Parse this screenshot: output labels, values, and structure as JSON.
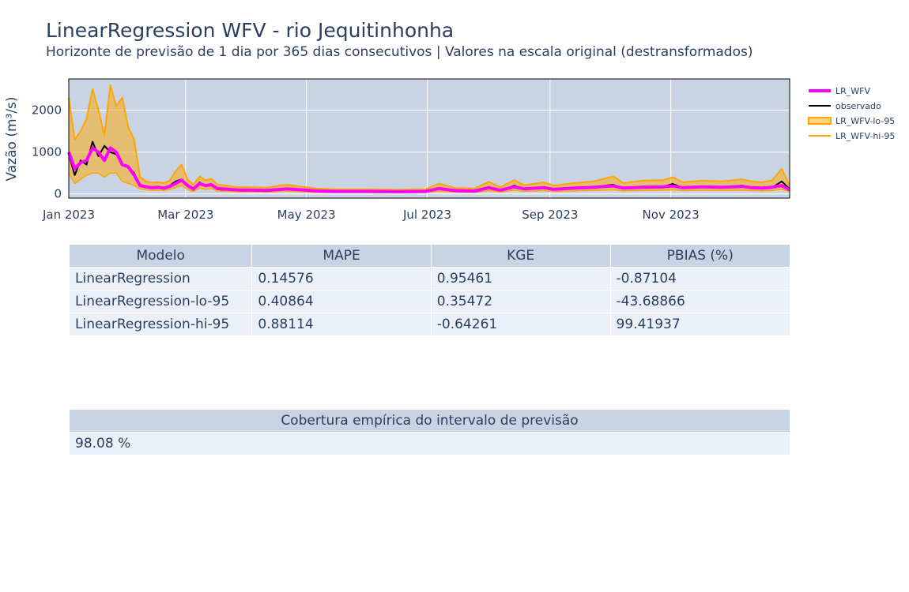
{
  "header": {
    "title": "LinearRegression WFV - rio Jequitinhonha",
    "subtitle": "Horizonte de previsão de 1 dia por 365 dias consecutivos | Valores na escala original (destransformados)"
  },
  "chart_data": {
    "type": "line",
    "title": "LinearRegression WFV - rio Jequitinhonha",
    "ylabel": "Vazão (m³/s)",
    "xlabel": "",
    "x_ticks": [
      "Jan 2023",
      "Mar 2023",
      "May 2023",
      "Jul 2023",
      "Sep 2023",
      "Nov 2023"
    ],
    "x_tick_days": [
      0,
      59,
      120,
      181,
      243,
      304
    ],
    "y_ticks": [
      0,
      1000,
      2000
    ],
    "xlim": [
      0,
      364
    ],
    "ylim": [
      -100,
      2750
    ],
    "grid": true,
    "legend_position": "right",
    "x": [
      0,
      3,
      6,
      9,
      12,
      15,
      18,
      21,
      24,
      27,
      30,
      33,
      36,
      39,
      42,
      45,
      48,
      51,
      54,
      57,
      60,
      63,
      66,
      69,
      72,
      75,
      78,
      81,
      84,
      87,
      90,
      100,
      110,
      120,
      125,
      135,
      150,
      165,
      180,
      187,
      195,
      205,
      212,
      218,
      225,
      230,
      240,
      245,
      255,
      265,
      275,
      280,
      290,
      300,
      305,
      310,
      320,
      330,
      340,
      345,
      350,
      355,
      360,
      364
    ],
    "series": [
      {
        "name": "LR_WFV",
        "color": "#ff00ff",
        "values": [
          1000,
          600,
          750,
          800,
          1100,
          1000,
          800,
          1100,
          1000,
          700,
          650,
          450,
          200,
          170,
          150,
          160,
          140,
          180,
          250,
          330,
          200,
          120,
          250,
          200,
          220,
          130,
          120,
          110,
          100,
          90,
          95,
          85,
          120,
          90,
          70,
          60,
          60,
          55,
          60,
          130,
          80,
          70,
          150,
          90,
          170,
          120,
          150,
          110,
          140,
          160,
          190,
          140,
          160,
          170,
          190,
          150,
          170,
          160,
          180,
          150,
          140,
          160,
          200,
          100
        ]
      },
      {
        "name": "observado",
        "color": "#000000",
        "values": [
          950,
          450,
          800,
          700,
          1250,
          900,
          1150,
          1000,
          950,
          700,
          650,
          500,
          200,
          170,
          150,
          160,
          140,
          200,
          300,
          350,
          200,
          100,
          280,
          180,
          230,
          110,
          100,
          100,
          90,
          90,
          80,
          80,
          130,
          90,
          70,
          60,
          60,
          50,
          50,
          150,
          70,
          60,
          170,
          80,
          200,
          110,
          160,
          100,
          150,
          170,
          220,
          130,
          180,
          170,
          240,
          150,
          180,
          160,
          200,
          150,
          130,
          150,
          300,
          120
        ]
      },
      {
        "name": "LR_WFV-lo-95",
        "color": "#ffa500",
        "values": [
          500,
          250,
          350,
          450,
          500,
          500,
          400,
          500,
          500,
          300,
          250,
          200,
          120,
          100,
          90,
          95,
          85,
          110,
          150,
          200,
          110,
          60,
          140,
          110,
          130,
          70,
          65,
          60,
          55,
          50,
          55,
          45,
          70,
          50,
          40,
          35,
          35,
          30,
          35,
          70,
          45,
          40,
          80,
          50,
          90,
          65,
          80,
          60,
          75,
          85,
          100,
          75,
          85,
          90,
          100,
          80,
          90,
          85,
          95,
          80,
          75,
          85,
          110,
          55
        ]
      },
      {
        "name": "LR_WFV-hi-95",
        "color": "#ffa500",
        "values": [
          2300,
          1300,
          1500,
          1800,
          2500,
          2000,
          1400,
          2600,
          2100,
          2300,
          1600,
          1300,
          400,
          300,
          270,
          280,
          260,
          320,
          550,
          700,
          350,
          220,
          420,
          330,
          360,
          230,
          210,
          190,
          170,
          160,
          160,
          150,
          220,
          160,
          130,
          110,
          110,
          100,
          110,
          250,
          140,
          130,
          290,
          160,
          330,
          210,
          280,
          200,
          260,
          300,
          420,
          260,
          320,
          330,
          400,
          280,
          320,
          300,
          350,
          300,
          280,
          320,
          600,
          200
        ]
      }
    ]
  },
  "legend": {
    "items": [
      {
        "label": "LR_WFV",
        "style": "line-thick",
        "color": "#ff00ff"
      },
      {
        "label": "observado",
        "style": "line",
        "color": "#000000"
      },
      {
        "label": "LR_WFV-lo-95",
        "style": "fill",
        "color": "#ffa500"
      },
      {
        "label": "LR_WFV-hi-95",
        "style": "line",
        "color": "#ffa500"
      }
    ]
  },
  "metrics_table": {
    "headers": [
      "Modelo",
      "MAPE",
      "KGE",
      "PBIAS (%)"
    ],
    "rows": [
      [
        "LinearRegression",
        "0.14576",
        "0.95461",
        "-0.87104"
      ],
      [
        "LinearRegression-lo-95",
        "0.40864",
        "0.35472",
        "-43.68866"
      ],
      [
        "LinearRegression-hi-95",
        "0.88114",
        "-0.64261",
        "99.41937"
      ]
    ]
  },
  "coverage_table": {
    "header": "Cobertura empírica do intervalo de previsão",
    "value": "98.08 %"
  },
  "colors": {
    "plot_bg": "#c8d4e3",
    "grid": "#ffffff",
    "text": "#2a3f5f",
    "table_header": "#c8d4e3",
    "table_cell": "#ebf0f8"
  }
}
